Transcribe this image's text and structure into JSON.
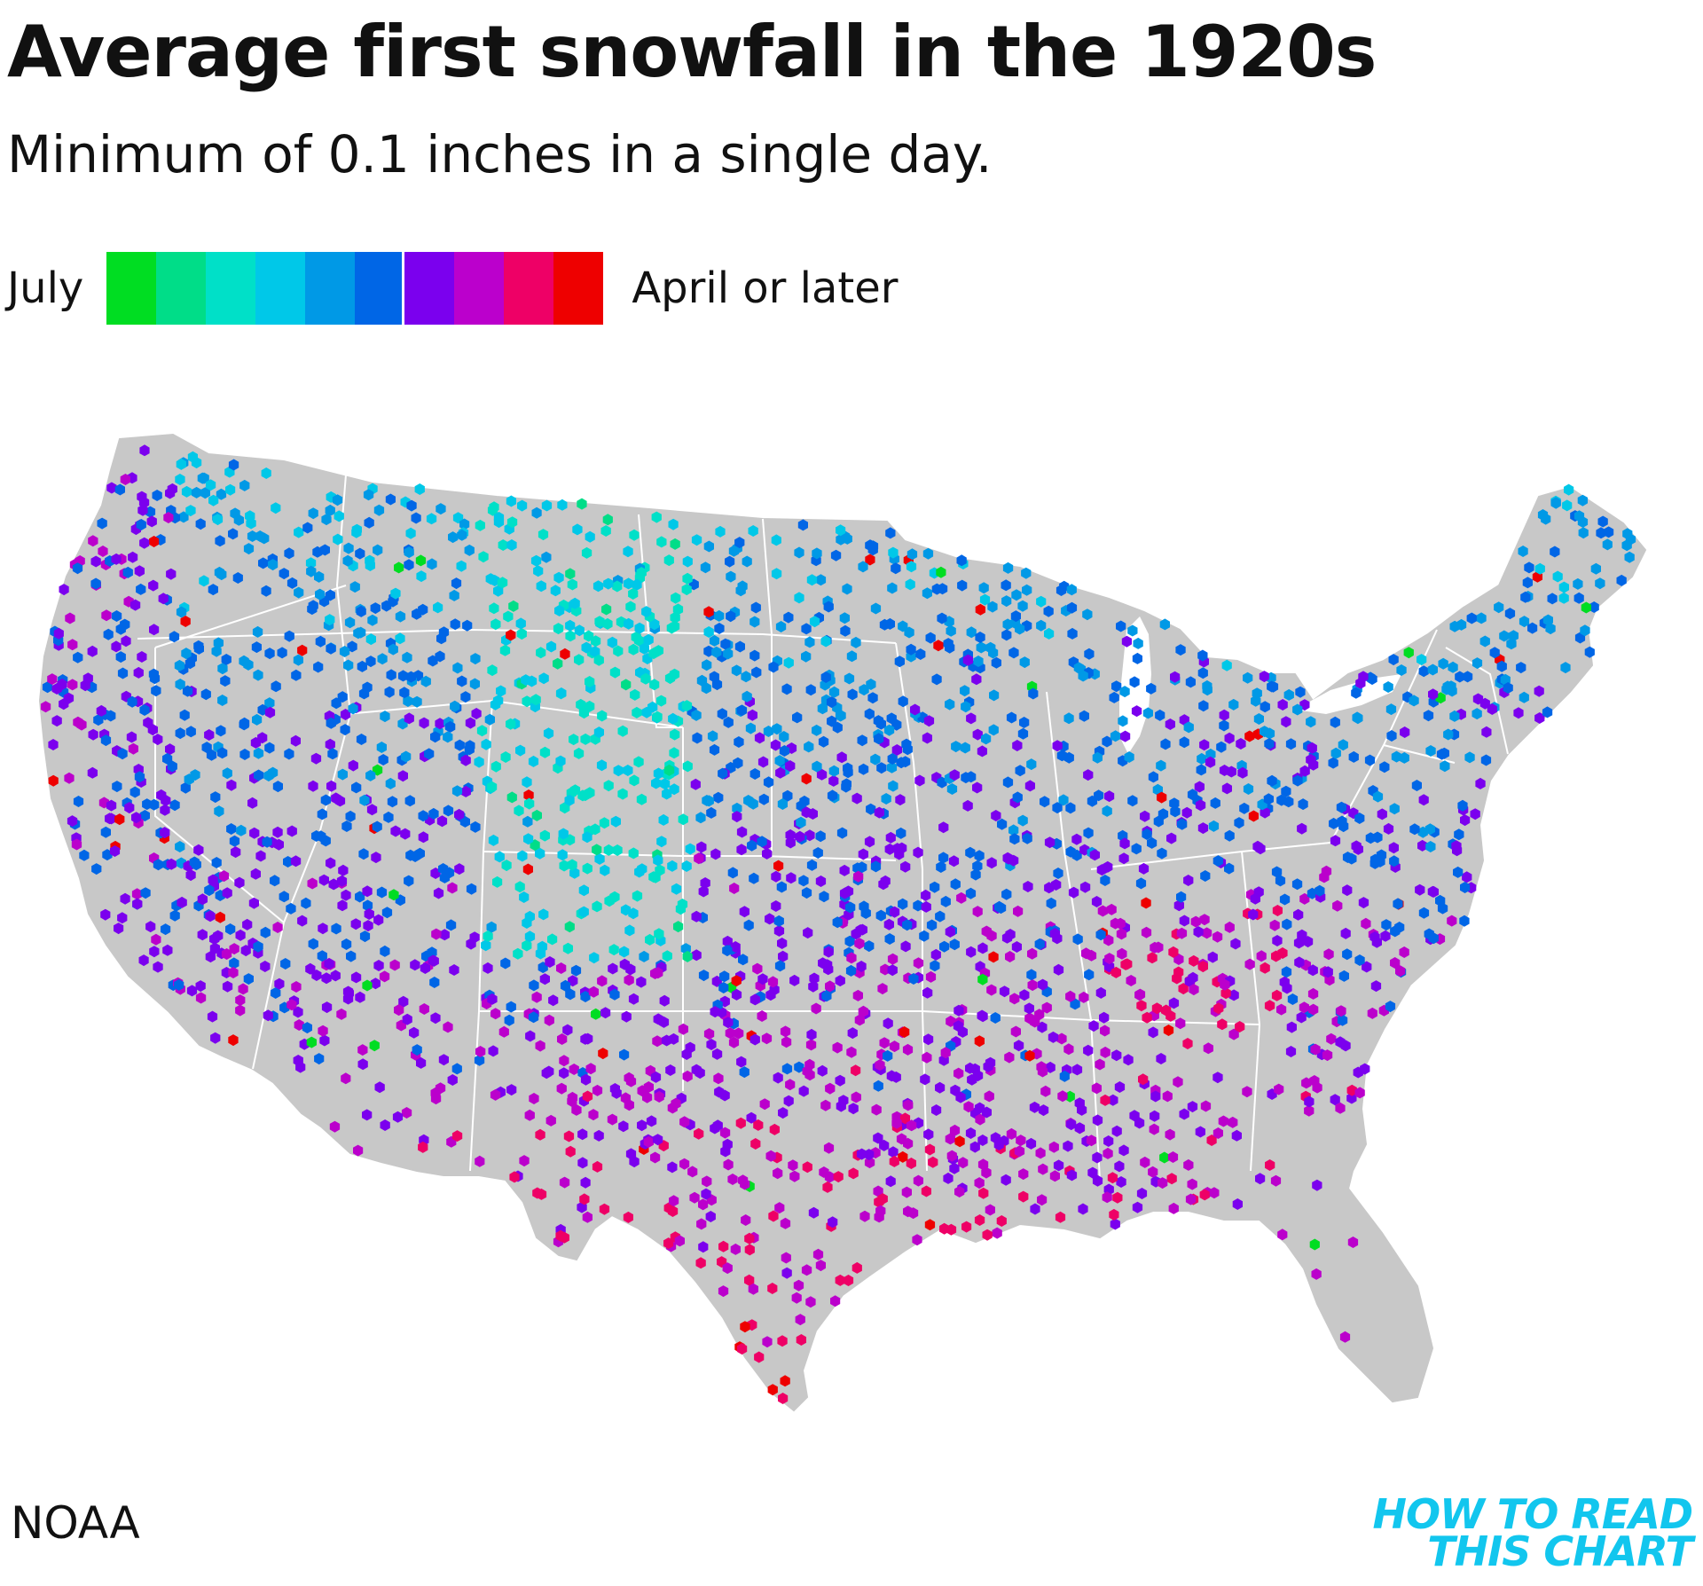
{
  "title": "Average first snowfall in the 1920s",
  "subtitle": "Minimum of 0.1 inches in a single day.",
  "legend": {
    "start_label": "July",
    "end_label": "April or later",
    "colors": [
      "#00dd22",
      "#00dd88",
      "#00e0c8",
      "#00c8e8",
      "#0099e6",
      "#0066e6",
      "#7b00ee",
      "#bb00cc",
      "#ee0066",
      "#ee0000"
    ]
  },
  "map": {
    "background_color": "#c8c8c8",
    "border_color": "#ffffff",
    "extent": "contiguous United States",
    "marker_shape": "hexagon"
  },
  "source": "NOAA",
  "brand": {
    "line1": "HOW TO READ",
    "line2": "THIS CHART",
    "color": "#12c6ee"
  }
}
